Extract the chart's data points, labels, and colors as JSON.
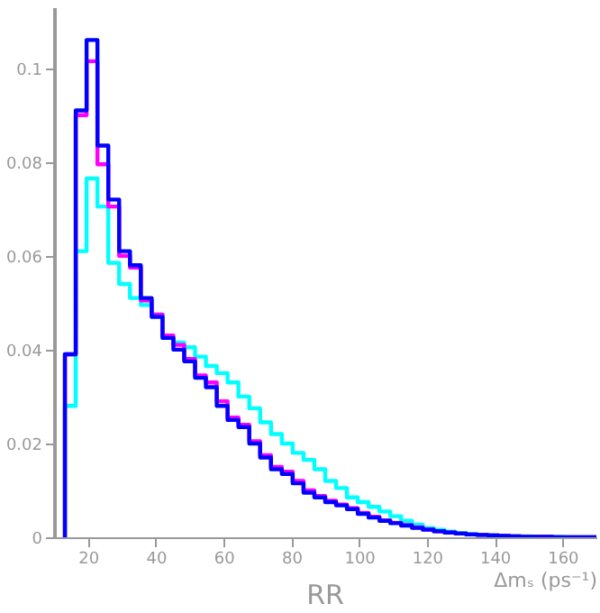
{
  "chart_data": {
    "type": "histogram",
    "xlabel": "Δmₛ (ps⁻¹)",
    "annotations": [
      "RR"
    ],
    "bins": [
      13.2,
      16.4,
      19.6,
      22.8,
      26.0,
      29.2,
      32.4,
      35.6,
      38.8,
      42.0,
      45.2,
      48.4,
      51.6,
      54.8,
      58.0,
      61.2,
      64.4,
      67.6,
      70.8,
      74.0,
      77.2,
      80.4,
      83.6,
      86.8,
      90.0,
      93.2,
      96.4,
      99.6,
      102.8,
      106.0,
      109.2,
      112.4,
      115.6,
      118.8,
      122.0,
      125.2,
      128.4,
      131.6,
      134.8,
      138.0,
      141.2,
      144.4,
      147.6,
      150.8,
      154.0,
      157.2,
      160.4,
      163.6,
      166.8,
      170.0
    ],
    "series": [
      {
        "color": "#00ffff",
        "values": [
          0.028,
          0.061,
          0.0765,
          0.0705,
          0.0585,
          0.054,
          0.051,
          0.0495,
          0.0475,
          0.0425,
          0.0415,
          0.0405,
          0.0385,
          0.0365,
          0.035,
          0.033,
          0.03,
          0.0275,
          0.0245,
          0.022,
          0.02,
          0.018,
          0.0165,
          0.0145,
          0.012,
          0.0105,
          0.0085,
          0.0075,
          0.0065,
          0.0055,
          0.0045,
          0.0035,
          0.0027,
          0.002,
          0.0016,
          0.0012,
          0.0009,
          0.0007,
          0.0005,
          0.0004,
          0.0003,
          0.0002,
          0.0002,
          0.0001,
          0.0001,
          0.0001,
          0,
          0,
          0
        ]
      },
      {
        "color": "#ff00ff",
        "values": [
          0.039,
          0.09,
          0.1015,
          0.0795,
          0.0705,
          0.06,
          0.0575,
          0.0505,
          0.0475,
          0.043,
          0.041,
          0.038,
          0.0345,
          0.033,
          0.029,
          0.0255,
          0.024,
          0.0205,
          0.0175,
          0.015,
          0.014,
          0.012,
          0.01,
          0.0088,
          0.0078,
          0.007,
          0.0062,
          0.0052,
          0.0044,
          0.0036,
          0.0031,
          0.0026,
          0.0021,
          0.0017,
          0.0013,
          0.001,
          0.0008,
          0.0006,
          0.0005,
          0.0004,
          0.0003,
          0.0002,
          0.0001,
          0.0001,
          0.0001,
          0,
          0,
          0,
          0
        ]
      },
      {
        "color": "#0000ff",
        "values": [
          0.039,
          0.091,
          0.106,
          0.0835,
          0.072,
          0.061,
          0.058,
          0.051,
          0.047,
          0.0425,
          0.04,
          0.0375,
          0.034,
          0.032,
          0.028,
          0.025,
          0.0235,
          0.02,
          0.017,
          0.0145,
          0.0135,
          0.0115,
          0.0095,
          0.0085,
          0.0075,
          0.0068,
          0.006,
          0.005,
          0.0042,
          0.0035,
          0.003,
          0.0025,
          0.002,
          0.0016,
          0.0013,
          0.001,
          0.0008,
          0.0006,
          0.0005,
          0.0004,
          0.0003,
          0.0002,
          0.0001,
          0.0001,
          0.0001,
          0,
          0,
          0,
          0
        ]
      }
    ],
    "xlim": [
      10,
      170
    ],
    "ylim": [
      0,
      0.113
    ],
    "xticks": [
      20,
      40,
      60,
      80,
      100,
      120,
      140,
      160
    ],
    "yticks": [
      0,
      0.02,
      0.04,
      0.06,
      0.08,
      0.1
    ],
    "grid": false
  }
}
